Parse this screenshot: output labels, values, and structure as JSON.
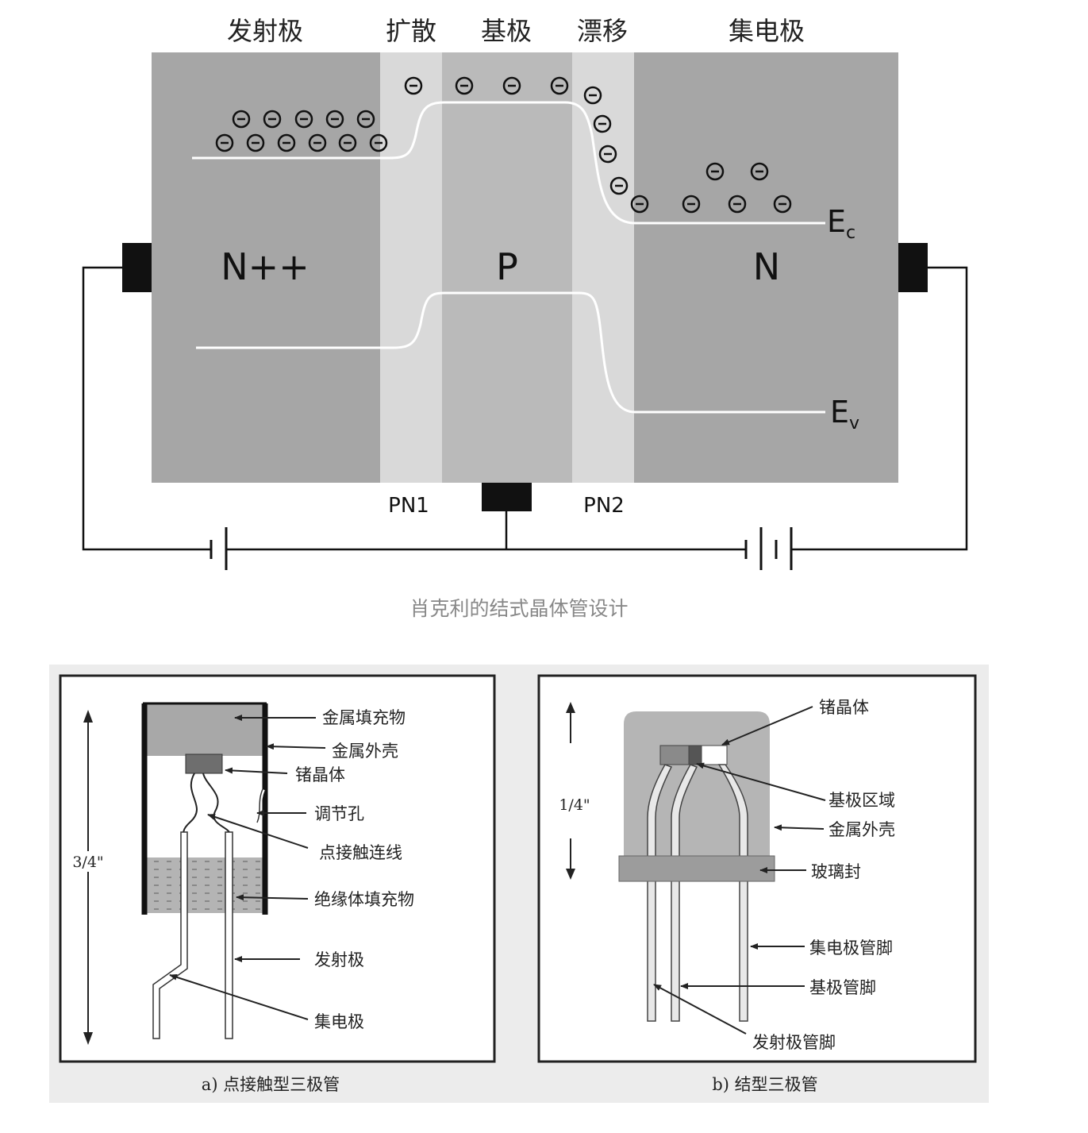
{
  "top_diagram": {
    "region_labels": [
      "发射极",
      "扩散",
      "基极",
      "漂移",
      "集电极"
    ],
    "regions": [
      {
        "type": "N++"
      },
      {
        "type": ""
      },
      {
        "type": "P"
      },
      {
        "type": ""
      },
      {
        "type": "N"
      }
    ],
    "junction_labels": {
      "pn1": "PN1",
      "pn2": "PN2"
    },
    "band_labels": {
      "ec_main": "E",
      "ec_sub": "c",
      "ev_main": "E",
      "ev_sub": "v"
    },
    "electron_symbol": "⊖",
    "caption": "肖克利的结式晶体管设计",
    "colors": {
      "bulk": "#a6a6a6",
      "junction": "#d9d9d9",
      "base": "#bababa",
      "band_line": "#ffffff",
      "contact": "#111111"
    }
  },
  "bottom_diagram": {
    "panel_bg": "#ececec",
    "a": {
      "dimension": "3/4\"",
      "labels": [
        "金属填充物",
        "金属外壳",
        "锗晶体",
        "调节孔",
        "点接触连线",
        "绝缘体填充物",
        "发射极",
        "集电极"
      ],
      "caption": "a) 点接触型三极管"
    },
    "b": {
      "dimension": "1/4\"",
      "labels": [
        "锗晶体",
        "基极区域",
        "金属外壳",
        "玻璃封",
        "集电极管脚",
        "基极管脚",
        "发射极管脚"
      ],
      "caption": "b) 结型三极管"
    }
  }
}
